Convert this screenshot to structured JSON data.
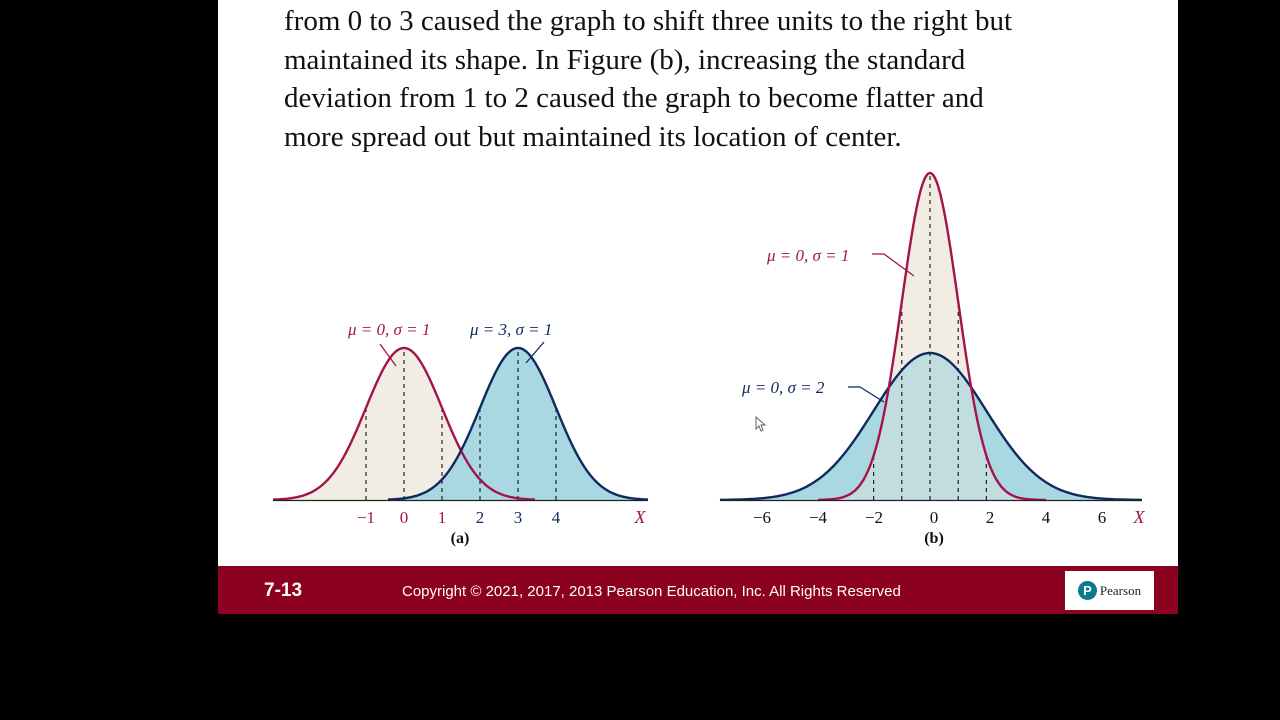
{
  "slide": {
    "body_lines": [
      "from 0 to 3 caused the graph to shift three units to the right but",
      "maintained its shape. In Figure (b), increasing the standard",
      "deviation from 1 to 2 caused the graph to become flatter and",
      "more spread out but maintained its location of center."
    ]
  },
  "figure_a": {
    "caption": "(a)",
    "label_curve1": "μ = 0, σ = 1",
    "label_curve2": "μ = 3, σ = 1",
    "axis_label": "X",
    "ticks": [
      "−1",
      "0",
      "1",
      "2",
      "3",
      "4"
    ]
  },
  "figure_b": {
    "caption": "(b)",
    "label_curve1": "μ = 0, σ = 1",
    "label_curve2": "μ = 0, σ = 2",
    "axis_label": "X",
    "ticks": [
      "−6",
      "−4",
      "−2",
      "0",
      "2",
      "4",
      "6"
    ]
  },
  "footer": {
    "slide_number": "7-13",
    "copyright": "Copyright © 2021, 2017, 2013 Pearson Education, Inc.  All Rights Reserved",
    "logo_letter": "P",
    "logo_text": "Pearson"
  },
  "colors": {
    "crimson": "#a3154a",
    "navy": "#0f2a5e",
    "beige_fill": "#f1ede2",
    "blue_fill": "#a9d8e2",
    "overlap_fill": "#c2dde0",
    "footer_bg": "#8c0020"
  },
  "chart_data": [
    {
      "type": "line",
      "title": "(a)",
      "xlabel": "X",
      "ylabel": "",
      "x_ticks": [
        -1,
        0,
        1,
        2,
        3,
        4
      ],
      "series": [
        {
          "name": "μ = 0, σ = 1",
          "mean": 0,
          "sd": 1,
          "color": "#a3154a",
          "fill": "#f1ede2"
        },
        {
          "name": "μ = 3, σ = 1",
          "mean": 3,
          "sd": 1,
          "color": "#0f2a5e",
          "fill": "#a9d8e2"
        }
      ],
      "dashed_lines_at": [
        -1,
        0,
        1,
        2,
        3,
        4
      ],
      "grid": false
    },
    {
      "type": "line",
      "title": "(b)",
      "xlabel": "X",
      "ylabel": "",
      "x_ticks": [
        -6,
        -4,
        -2,
        0,
        2,
        4,
        6
      ],
      "series": [
        {
          "name": "μ = 0, σ = 1",
          "mean": 0,
          "sd": 1,
          "color": "#a3154a",
          "fill": "#f1ede2"
        },
        {
          "name": "μ = 0, σ = 2",
          "mean": 0,
          "sd": 2,
          "color": "#0f2a5e",
          "fill": "#a9d8e2"
        }
      ],
      "dashed_lines_at": [
        -2,
        -1,
        0,
        1,
        2
      ],
      "grid": false
    }
  ]
}
